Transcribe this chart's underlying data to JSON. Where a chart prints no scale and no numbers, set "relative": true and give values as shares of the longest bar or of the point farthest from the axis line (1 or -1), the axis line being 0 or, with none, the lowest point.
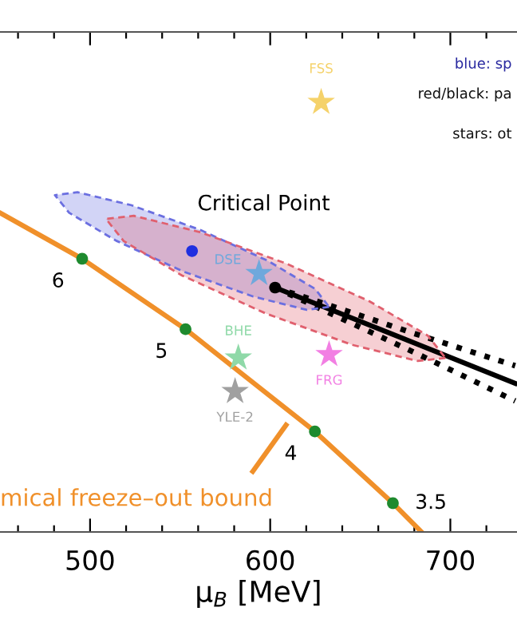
{
  "chart_data": {
    "type": "line",
    "relative": true,
    "xlabel": "μ$_{B}$ [MeV]",
    "xlim": [
      450,
      737
    ],
    "xticks": [
      {
        "value": 460,
        "label": null
      },
      {
        "value": 480,
        "label": null
      },
      500,
      {
        "value": 520,
        "label": null
      },
      {
        "value": 540,
        "label": null
      },
      {
        "value": 560,
        "label": null
      },
      {
        "value": 580,
        "label": null
      },
      600,
      {
        "value": 620,
        "label": null
      },
      {
        "value": 640,
        "label": null
      },
      {
        "value": 660,
        "label": null
      },
      {
        "value": 680,
        "label": null
      },
      700,
      {
        "value": 720,
        "label": null
      }
    ],
    "annotations": [
      "blue: sp",
      "red/black: pa",
      "stars: ot",
      "Critical Point",
      "mical freeze–out bound",
      {
        "text": "6",
        "x": 495.6,
        "y": 0.636
      },
      {
        "text": "5",
        "x": 553.0,
        "y": 0.472
      },
      {
        "text": "4",
        "x": 624.8,
        "y": 0.234
      },
      {
        "text": "3.5",
        "x": 668.1,
        "y": 0.067
      }
    ],
    "series": [
      {
        "type": "area",
        "color": "#6b6fe0",
        "line_style": "dashed",
        "x": [
          632.7,
          620.3,
          590.6,
          551.9,
          514.5,
          488.4,
          480.5,
          493.0,
          522.7,
          561.3,
          598.8,
          624.9,
          632.7
        ],
        "values": [
          0.524,
          0.517,
          0.548,
          0.606,
          0.678,
          0.743,
          0.784,
          0.791,
          0.761,
          0.703,
          0.631,
          0.566,
          0.524
        ]
      },
      {
        "type": "area",
        "color": "#e0606e",
        "line_style": "dashed",
        "x": [
          697.3,
          681.9,
          645.2,
          597.4,
          551.1,
          518.7,
          508.8,
          524.3,
          561.0,
          608.8,
          655.1,
          687.5,
          697.3
        ],
        "values": [
          0.405,
          0.398,
          0.436,
          0.509,
          0.597,
          0.677,
          0.729,
          0.736,
          0.698,
          0.625,
          0.537,
          0.457,
          0.405
        ]
      },
      {
        "color": "#f0902a",
        "line_style": "solid",
        "x": [
          450.0,
          495.6,
          553.0,
          624.8,
          668.1,
          684.0
        ],
        "values": [
          0.743,
          0.636,
          0.472,
          0.234,
          0.067,
          0.0
        ]
      },
      {
        "color": "#f0902a",
        "line_style": "solid",
        "x": [
          590.3,
          608.8
        ],
        "values": [
          0.141,
          0.249
        ]
      },
      {
        "type": "scatter",
        "color": "#1e8a2e",
        "marker": "circle",
        "x": [
          495.6,
          553.0,
          624.8,
          668.1
        ],
        "values": [
          0.636,
          0.472,
          0.234,
          0.067
        ]
      },
      {
        "color": "#000000",
        "line_style": "solid",
        "x": [
          602.7,
          640,
          680,
          736
        ],
        "values": [
          0.569,
          0.507,
          0.44,
          0.346
        ]
      },
      {
        "color": "#000000",
        "line_style": "dotted",
        "x": [
          602.7,
          640,
          680,
          736
        ],
        "values": [
          0.569,
          0.518,
          0.462,
          0.387
        ]
      },
      {
        "color": "#000000",
        "line_style": "dotted",
        "x": [
          602.7,
          640,
          680,
          736
        ],
        "values": [
          0.569,
          0.496,
          0.418,
          0.305
        ]
      },
      {
        "type": "scatter",
        "color": "#000000",
        "marker": "circle",
        "x": [
          602.7
        ],
        "values": [
          0.569
        ]
      },
      {
        "type": "scatter",
        "color": "#1f2fe0",
        "marker": "circle",
        "x": [
          556.6
        ],
        "values": [
          0.654
        ]
      },
      {
        "type": "scatter",
        "name": "FSS",
        "color": "#f5d26a",
        "marker": "star",
        "x": [
          628.3
        ],
        "values": [
          1.0
        ]
      },
      {
        "type": "scatter",
        "name": "DSE",
        "color": "#6fa8dc",
        "marker": "star",
        "x": [
          593.8
        ],
        "values": [
          0.602
        ]
      },
      {
        "type": "scatter",
        "name": "BHE",
        "color": "#8fd9a8",
        "marker": "star",
        "x": [
          582.3
        ],
        "values": [
          0.405
        ]
      },
      {
        "type": "scatter",
        "name": "YLE-2",
        "color": "#a0a0a0",
        "marker": "star",
        "x": [
          580.5
        ],
        "values": [
          0.327
        ]
      },
      {
        "type": "scatter",
        "name": "FRG",
        "color": "#f27fe3",
        "marker": "star",
        "x": [
          632.7
        ],
        "values": [
          0.413
        ]
      }
    ]
  }
}
